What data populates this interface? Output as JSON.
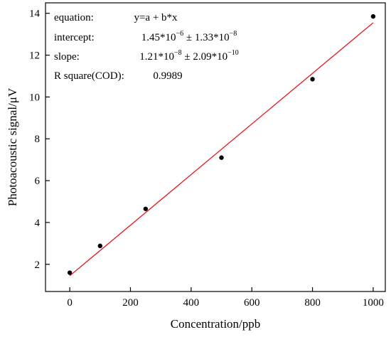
{
  "chart_data": {
    "type": "scatter",
    "title": "",
    "xlabel": "Concentration/ppb",
    "ylabel": "Photoacoustic signal/μV",
    "xlim": [
      -80,
      1040
    ],
    "ylim": [
      0.7,
      14.5
    ],
    "xticks": [
      0,
      200,
      400,
      600,
      800,
      1000
    ],
    "yticks": [
      2,
      4,
      6,
      8,
      10,
      12,
      14
    ],
    "grid": false,
    "points": [
      {
        "x": 0,
        "y": 1.6
      },
      {
        "x": 100,
        "y": 2.88
      },
      {
        "x": 250,
        "y": 4.65
      },
      {
        "x": 500,
        "y": 7.1
      },
      {
        "x": 800,
        "y": 10.85
      },
      {
        "x": 1000,
        "y": 13.85
      }
    ],
    "fit": {
      "x": [
        0,
        1000
      ],
      "y": [
        1.45,
        13.55
      ],
      "color": "#e41a1c"
    },
    "point_color": "#000000",
    "annotations": [
      {
        "label": "equation:",
        "value": [
          {
            "t": "y=a + b*x"
          }
        ]
      },
      {
        "label": "intercept:",
        "value": [
          {
            "t": "1.45*10"
          },
          {
            "t": "−6",
            "sup": true
          },
          {
            "t": " ± 1.33*10"
          },
          {
            "t": "−8",
            "sup": true
          }
        ]
      },
      {
        "label": "slope:",
        "value": [
          {
            "t": "1.21*10"
          },
          {
            "t": "−8",
            "sup": true
          },
          {
            "t": " ± 2.09*10"
          },
          {
            "t": "−10",
            "sup": true
          }
        ]
      },
      {
        "label": "R square(COD):",
        "value": [
          {
            "t": "0.9989"
          }
        ]
      }
    ]
  }
}
